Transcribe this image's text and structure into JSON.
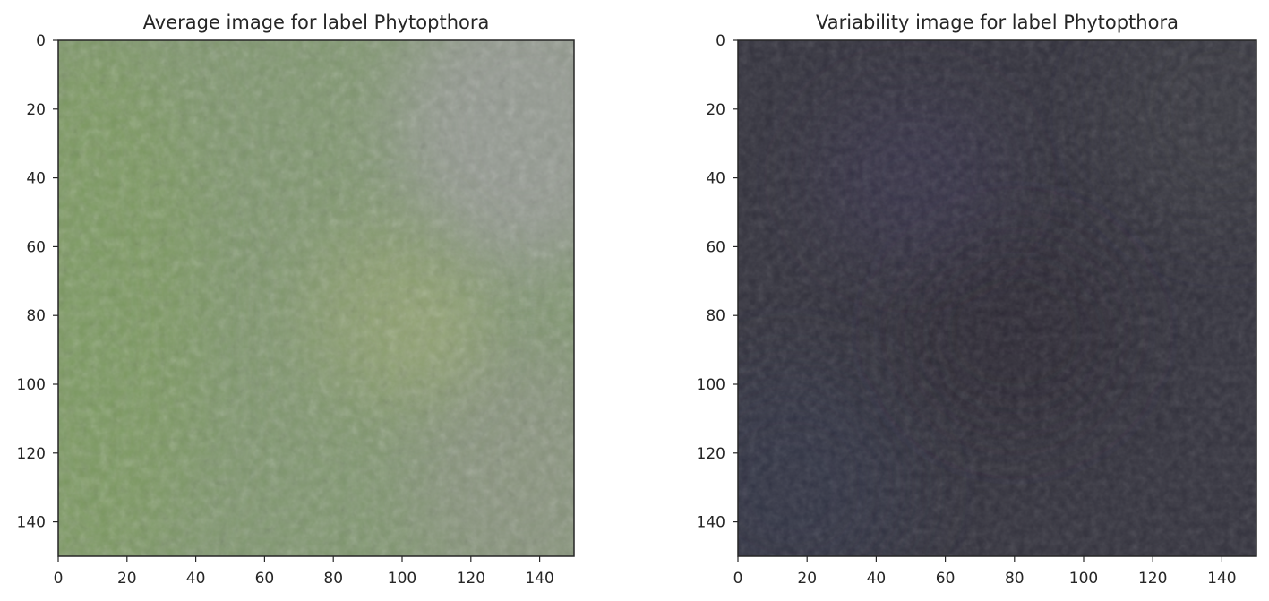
{
  "chart_data": [
    {
      "type": "image",
      "title": "Average image for label Phytopthora",
      "xlabel": "",
      "ylabel": "",
      "xlim": [
        0,
        150
      ],
      "ylim": [
        150,
        0
      ],
      "xticks": [
        0,
        20,
        40,
        60,
        80,
        100,
        120,
        140
      ],
      "yticks": [
        0,
        20,
        40,
        60,
        80,
        100,
        120,
        140
      ],
      "grid": false,
      "colors": {
        "base": "#7f966e",
        "upper_right": "#979a96",
        "lower_right": "#8c9283",
        "left": "#7a9a5c",
        "blob": "#8fa06e",
        "blob_highlight": "#a3ad7c"
      }
    },
    {
      "type": "image",
      "title": "Variability image for label Phytopthora",
      "xlabel": "",
      "ylabel": "",
      "xlim": [
        0,
        150
      ],
      "ylim": [
        150,
        0
      ],
      "xticks": [
        0,
        20,
        40,
        60,
        80,
        100,
        120,
        140
      ],
      "yticks": [
        0,
        20,
        40,
        60,
        80,
        100,
        120,
        140
      ],
      "grid": false,
      "colors": {
        "base": "#33323d",
        "upper_right": "#3b3b42",
        "lower_left": "#313446",
        "center_dark": "#2a2830",
        "purple_tint": "#3a3450"
      }
    }
  ]
}
